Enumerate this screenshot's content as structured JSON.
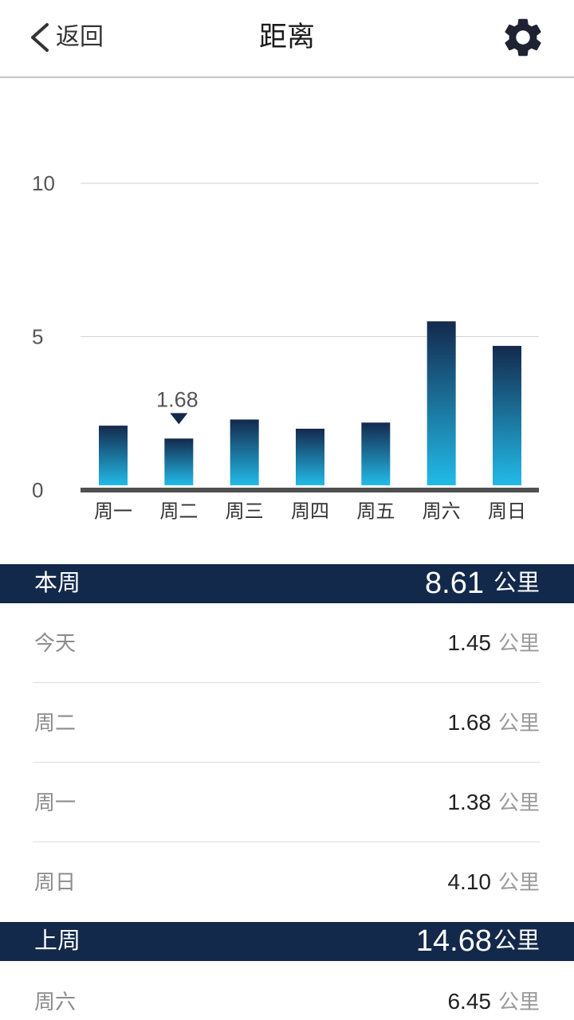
{
  "header": {
    "back_icon": "chevron-left-icon",
    "back_label": "返回",
    "title": "距离",
    "settings_icon": "gear-icon"
  },
  "chart_data": {
    "type": "bar",
    "categories": [
      "周一",
      "周二",
      "周三",
      "周四",
      "周五",
      "周六",
      "周日"
    ],
    "values": [
      2.1,
      1.68,
      2.3,
      2.0,
      2.2,
      5.5,
      4.7
    ],
    "yticks": [
      0,
      5,
      10
    ],
    "ylim": [
      0,
      10
    ],
    "grid": true,
    "annotation": {
      "category": "周二",
      "label": "1.68",
      "marker_icon": "triangle-down-icon"
    }
  },
  "this_week": {
    "label": "本周",
    "total": "8.61",
    "unit": "公里",
    "days": [
      {
        "day": "今天",
        "value": "1.45",
        "unit": "公里"
      },
      {
        "day": "周二",
        "value": "1.68",
        "unit": "公里"
      },
      {
        "day": "周一",
        "value": "1.38",
        "unit": "公里"
      },
      {
        "day": "周日",
        "value": "4.10",
        "unit": "公里"
      }
    ]
  },
  "last_week": {
    "label": "上周",
    "total": "14.68",
    "unit": "公里",
    "days": [
      {
        "day": "周六",
        "value": "6.45",
        "unit": "公里"
      }
    ]
  },
  "colors": {
    "navy": "#13294b",
    "bar_top": "#14294d",
    "bar_bottom": "#22bbe8",
    "axis": "#505050",
    "grid": "#d2d2d2",
    "tick_text": "#555555",
    "category_text": "#333333"
  }
}
